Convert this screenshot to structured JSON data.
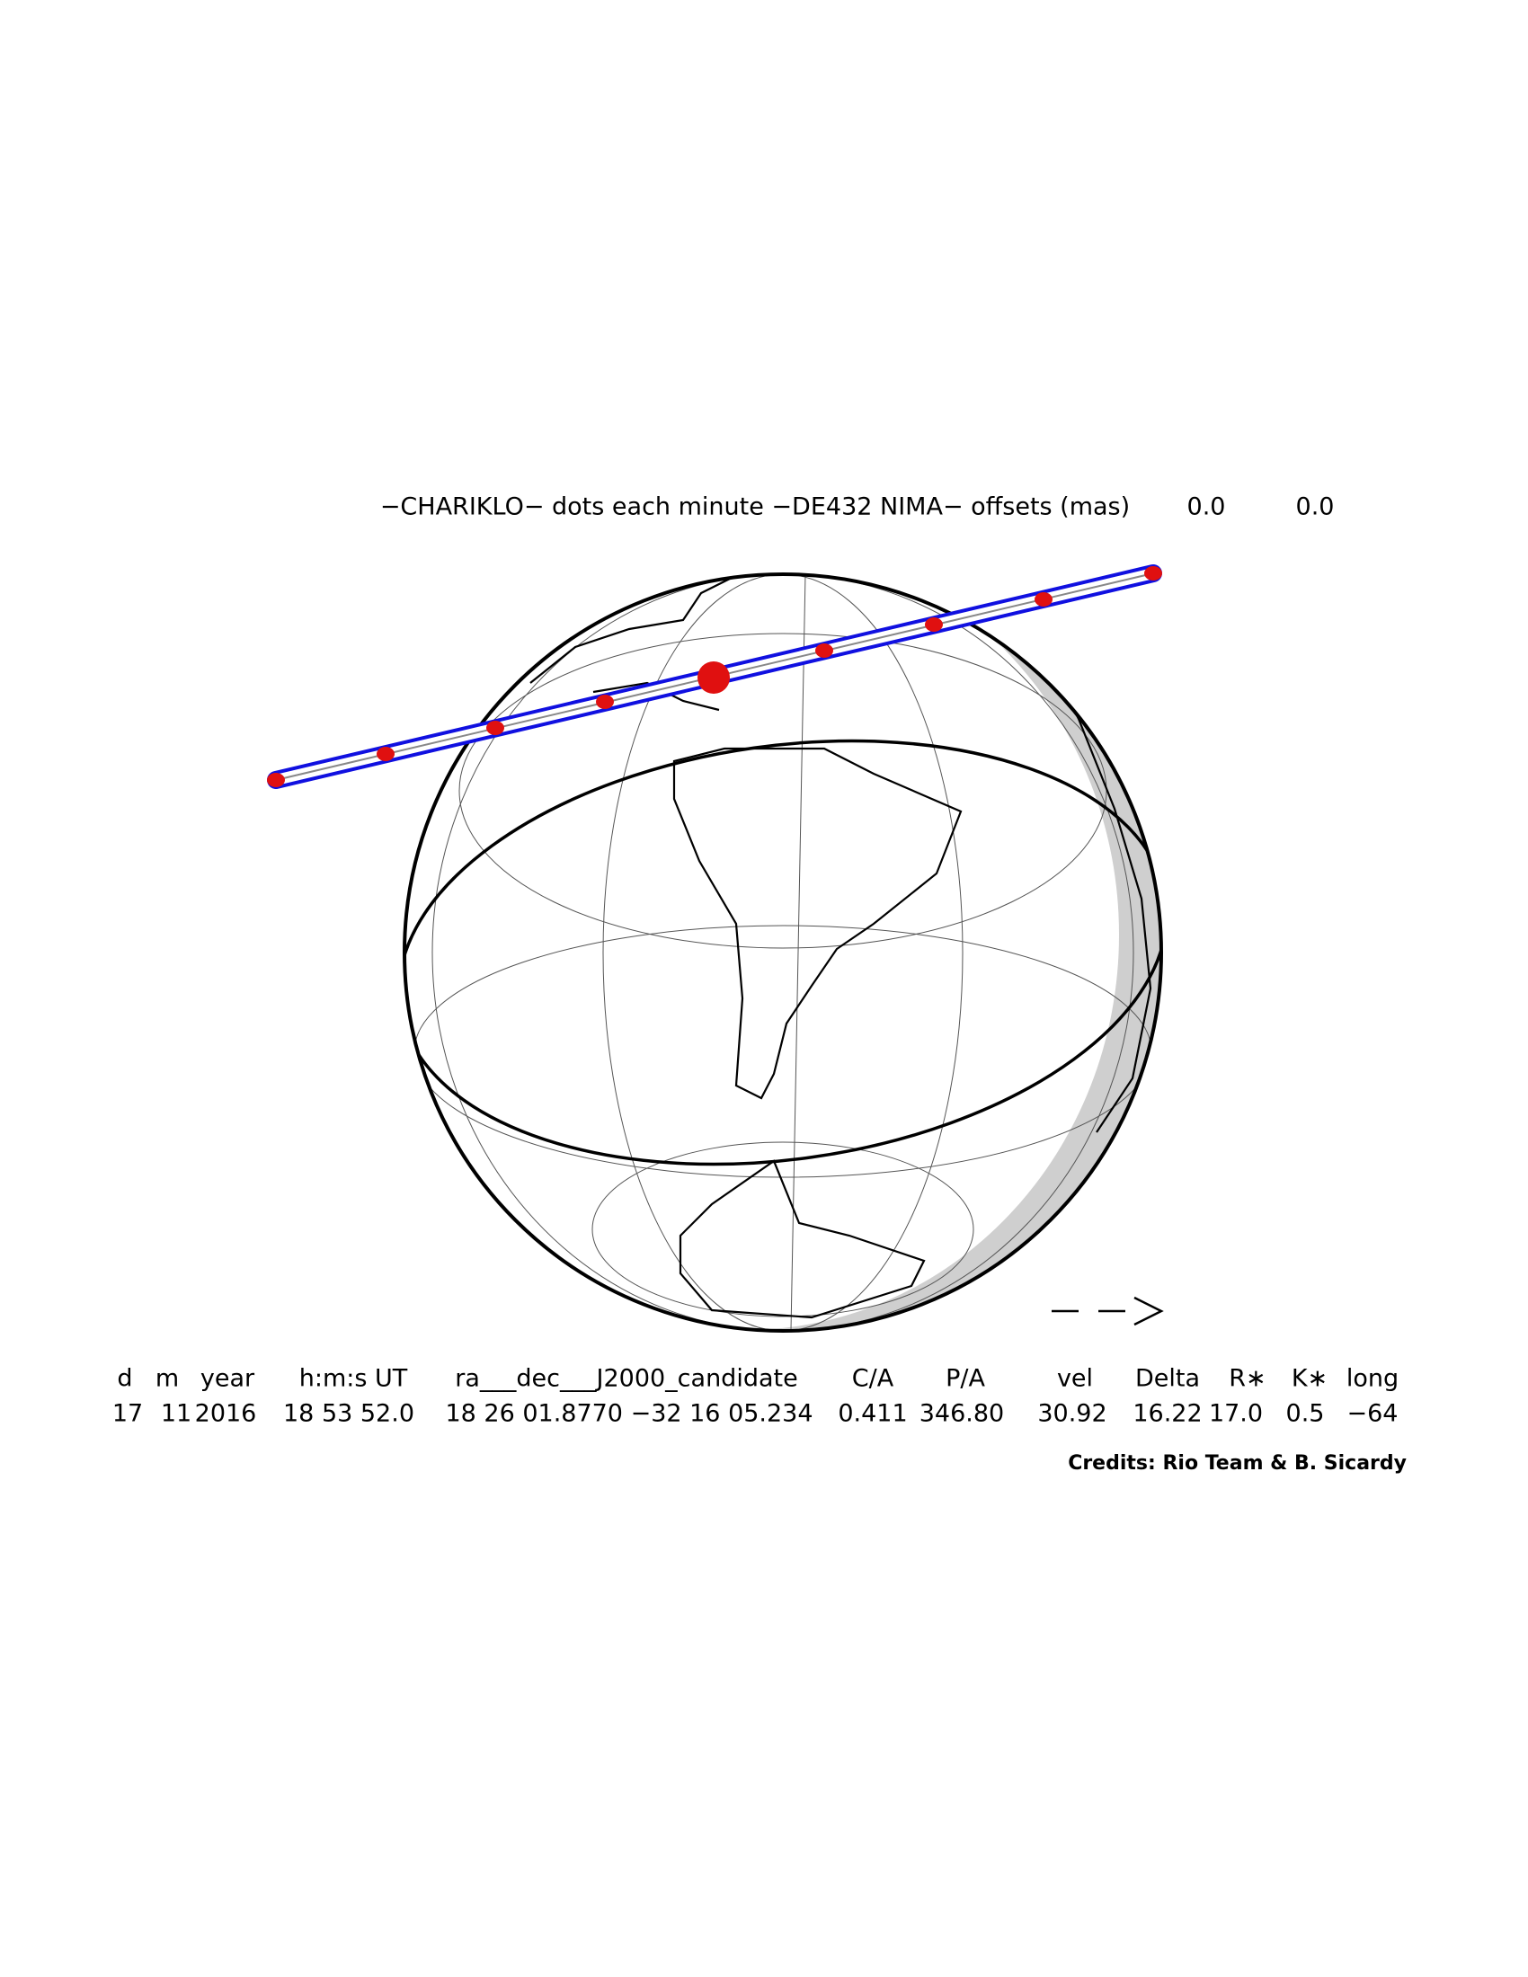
{
  "header": {
    "title": "−CHARIKLO− dots each minute −DE432 NIMA− offsets (mas)",
    "offsets": [
      "0.0",
      "0.0"
    ]
  },
  "table": {
    "headers": [
      "d",
      "m",
      "year",
      "h:m:s UT",
      "ra___dec___J2000_candidate",
      "C/A",
      "P/A",
      "vel",
      "Delta",
      "R∗",
      "K∗",
      "long"
    ],
    "rows": [
      [
        "17",
        "11",
        "2016",
        "18 53 52.0",
        "18 26 01.8770 −32 16 05.234",
        "0.411",
        "346.80",
        "30.92",
        "16.22",
        "17.0",
        "0.5",
        "−64"
      ]
    ]
  },
  "credits": "Credits: Rio Team & B. Sicardy"
}
